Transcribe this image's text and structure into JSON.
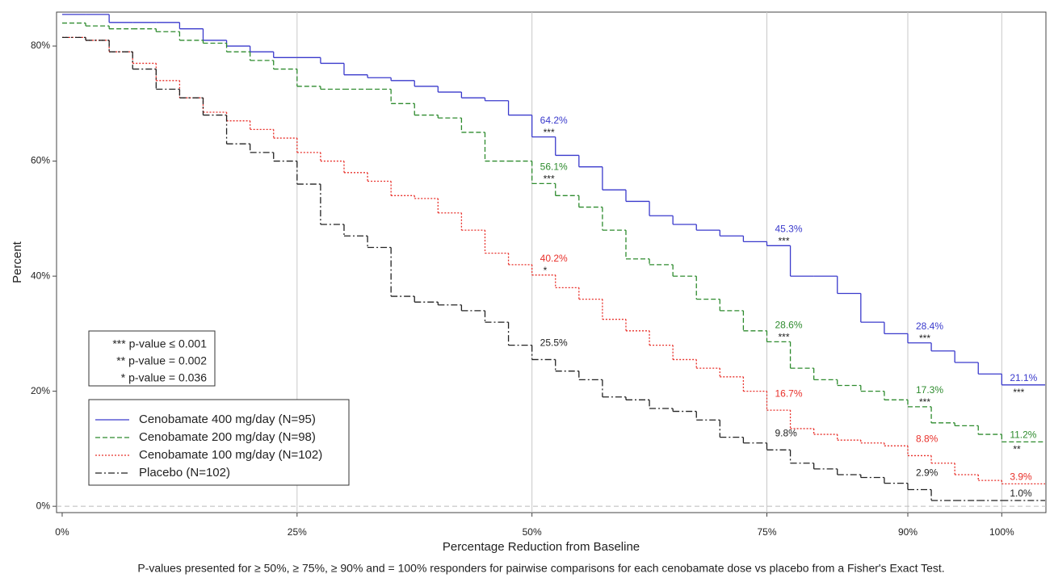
{
  "chart_data": {
    "type": "step",
    "x_label": "Percentage Reduction from Baseline",
    "y_label": "Percent",
    "footnote": "P-values presented for ≥ 50%, ≥ 75%, ≥ 90% and = 100% responders for pairwise comparisons for each cenobamate dose vs placebo from a Fisher's Exact Test.",
    "notes": [
      "*** p-value ≤ 0.001",
      "** p-value = 0.002",
      "* p-value = 0.036"
    ],
    "x": [
      0,
      2.5,
      5,
      7.5,
      10,
      12.5,
      15,
      17.5,
      20,
      22.5,
      25,
      27.5,
      30,
      32.5,
      35,
      37.5,
      40,
      42.5,
      45,
      47.5,
      50,
      52.5,
      55,
      57.5,
      60,
      62.5,
      65,
      67.5,
      70,
      72.5,
      75,
      77.5,
      80,
      82.5,
      85,
      87.5,
      90,
      92.5,
      95,
      97.5,
      100
    ],
    "series": [
      {
        "name": "Cenobamate 400 mg/day (N=95)",
        "color": "#3a3acc",
        "style": "solid",
        "values": [
          85.5,
          85.5,
          84.1,
          84.1,
          84.1,
          83,
          81,
          80,
          79,
          78,
          78,
          77,
          75,
          74.5,
          74,
          73,
          72,
          71,
          70.5,
          68,
          64.2,
          61,
          59,
          55,
          53,
          50.5,
          49,
          48,
          47,
          46,
          45.3,
          40,
          40,
          37,
          32,
          30,
          28.4,
          27,
          25,
          23,
          21.1
        ],
        "value_labels": [
          null,
          null,
          null,
          null,
          null,
          null,
          null,
          null,
          null,
          null,
          null,
          null,
          null,
          null,
          null,
          null,
          null,
          null,
          null,
          null,
          "64.2%",
          null,
          null,
          null,
          null,
          null,
          null,
          null,
          null,
          null,
          "45.3%",
          null,
          null,
          null,
          null,
          null,
          "28.4%",
          null,
          null,
          null,
          "21.1%"
        ],
        "significance": [
          null,
          null,
          null,
          null,
          null,
          null,
          null,
          null,
          null,
          null,
          null,
          null,
          null,
          null,
          null,
          null,
          null,
          null,
          null,
          null,
          "***",
          null,
          null,
          null,
          null,
          null,
          null,
          null,
          null,
          null,
          "***",
          null,
          null,
          null,
          null,
          null,
          "***",
          null,
          null,
          null,
          "***"
        ]
      },
      {
        "name": "Cenobamate 200 mg/day (N=98)",
        "color": "#2e8b2e",
        "style": "dashed",
        "values": [
          84,
          83.5,
          83,
          83,
          82.5,
          81,
          80.5,
          79,
          77.5,
          76,
          73,
          72.5,
          72.5,
          72.5,
          70,
          68,
          67.5,
          65,
          60,
          60,
          56.1,
          54,
          52,
          48,
          43,
          42,
          40,
          36,
          34,
          30.5,
          28.6,
          24,
          22,
          21,
          20,
          18.5,
          17.3,
          14.5,
          14,
          12.5,
          11.2
        ],
        "value_labels": [
          null,
          null,
          null,
          null,
          null,
          null,
          null,
          null,
          null,
          null,
          null,
          null,
          null,
          null,
          null,
          null,
          null,
          null,
          null,
          null,
          "56.1%",
          null,
          null,
          null,
          null,
          null,
          null,
          null,
          null,
          null,
          "28.6%",
          null,
          null,
          null,
          null,
          null,
          "17.3%",
          null,
          null,
          null,
          "11.2%"
        ],
        "significance": [
          null,
          null,
          null,
          null,
          null,
          null,
          null,
          null,
          null,
          null,
          null,
          null,
          null,
          null,
          null,
          null,
          null,
          null,
          null,
          null,
          "***",
          null,
          null,
          null,
          null,
          null,
          null,
          null,
          null,
          null,
          "***",
          null,
          null,
          null,
          null,
          null,
          "***",
          null,
          null,
          null,
          "**"
        ]
      },
      {
        "name": "Cenobamate 100 mg/day (N=102)",
        "color": "#e8302a",
        "style": "dotted",
        "values": [
          81.5,
          81,
          79,
          77,
          74,
          71,
          68.5,
          67,
          65.5,
          64,
          61.5,
          60,
          58,
          56.5,
          54,
          53.5,
          51,
          48,
          44,
          42,
          40.2,
          38,
          36,
          32.5,
          30.5,
          28,
          25.5,
          24,
          22.5,
          20,
          16.7,
          13.5,
          12.5,
          11.5,
          11,
          10.5,
          8.8,
          7.5,
          5.5,
          4.5,
          3.9
        ],
        "value_labels": [
          null,
          null,
          null,
          null,
          null,
          null,
          null,
          null,
          null,
          null,
          null,
          null,
          null,
          null,
          null,
          null,
          null,
          null,
          null,
          null,
          "40.2%",
          null,
          null,
          null,
          null,
          null,
          null,
          null,
          null,
          null,
          "16.7%",
          null,
          null,
          null,
          null,
          null,
          "8.8%",
          null,
          null,
          null,
          "3.9%"
        ],
        "significance": [
          null,
          null,
          null,
          null,
          null,
          null,
          null,
          null,
          null,
          null,
          null,
          null,
          null,
          null,
          null,
          null,
          null,
          null,
          null,
          null,
          "*",
          null,
          null,
          null,
          null,
          null,
          null,
          null,
          null,
          null,
          null,
          null,
          null,
          null,
          null,
          null,
          null,
          null,
          null,
          null,
          null
        ]
      },
      {
        "name": "Placebo (N=102)",
        "color": "#222222",
        "style": "dashdot",
        "values": [
          81.5,
          81,
          79,
          76,
          72.5,
          71,
          68,
          63,
          61.5,
          60,
          56,
          49,
          47,
          45,
          36.5,
          35.5,
          35,
          34,
          32,
          28,
          25.5,
          23.5,
          22,
          19,
          18.5,
          17,
          16.5,
          15,
          12,
          11,
          9.8,
          7.5,
          6.5,
          5.5,
          5,
          4,
          2.9,
          1,
          1,
          1,
          1.0
        ],
        "value_labels": [
          null,
          null,
          null,
          null,
          null,
          null,
          null,
          null,
          null,
          null,
          null,
          null,
          null,
          null,
          null,
          null,
          null,
          null,
          null,
          null,
          "25.5%",
          null,
          null,
          null,
          null,
          null,
          null,
          null,
          null,
          null,
          "9.8%",
          null,
          null,
          null,
          null,
          null,
          "2.9%",
          null,
          null,
          null,
          "1.0%"
        ],
        "significance": [
          null,
          null,
          null,
          null,
          null,
          null,
          null,
          null,
          null,
          null,
          null,
          null,
          null,
          null,
          null,
          null,
          null,
          null,
          null,
          null,
          null,
          null,
          null,
          null,
          null,
          null,
          null,
          null,
          null,
          null,
          null,
          null,
          null,
          null,
          null,
          null,
          null,
          null,
          null,
          null,
          null
        ]
      }
    ],
    "xlim": [
      -0.6,
      104.7
    ],
    "ylim": [
      -1.1,
      85.9
    ],
    "xticks": [
      {
        "value": 0,
        "label": "0%"
      },
      {
        "value": 25,
        "label": "25%"
      },
      {
        "value": 50,
        "label": "50%"
      },
      {
        "value": 75,
        "label": "75%"
      },
      {
        "value": 90,
        "label": "90%"
      },
      {
        "value": 100,
        "label": "100%"
      }
    ],
    "yticks": [
      {
        "value": 0,
        "label": "0%"
      },
      {
        "value": 20,
        "label": "20%"
      },
      {
        "value": 40,
        "label": "40%"
      },
      {
        "value": 60,
        "label": "60%"
      },
      {
        "value": 80,
        "label": "80%"
      }
    ],
    "x_grid": true,
    "zero_line": true
  }
}
